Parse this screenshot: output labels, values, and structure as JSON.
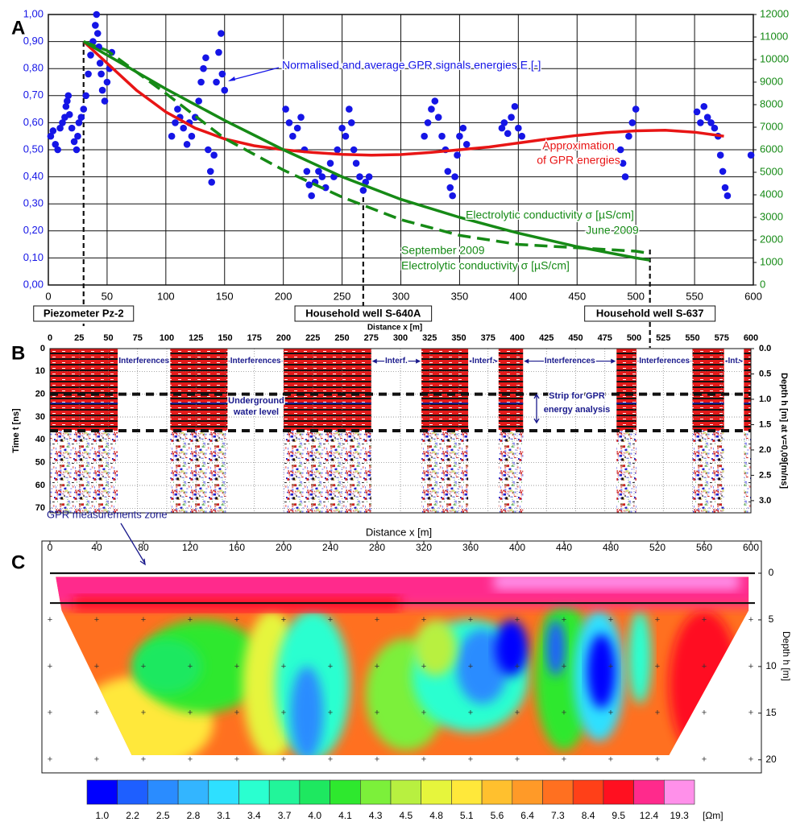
{
  "chart_data": [
    {
      "type": "energy",
      "panel_label": "A",
      "xlim": [
        0,
        600
      ],
      "xticks": [
        0,
        50,
        100,
        150,
        200,
        250,
        300,
        350,
        400,
        450,
        500,
        550,
        600
      ],
      "ylim": [
        0,
        1
      ],
      "yticks": [
        {
          "value": 0,
          "label": "0,00"
        },
        {
          "value": 0.1,
          "label": "0,10"
        },
        {
          "value": 0.2,
          "label": "0,20"
        },
        {
          "value": 0.3,
          "label": "0,30"
        },
        {
          "value": 0.4,
          "label": "0,40"
        },
        {
          "value": 0.5,
          "label": "0,50"
        },
        {
          "value": 0.6,
          "label": "0,60"
        },
        {
          "value": 0.7,
          "label": "0,70"
        },
        {
          "value": 0.8,
          "label": "0,80"
        },
        {
          "value": 0.9,
          "label": "0,90"
        },
        {
          "value": 1,
          "label": "1,00"
        }
      ],
      "y2lim": [
        0,
        12000
      ],
      "y2ticks": [
        0,
        1000,
        2000,
        3000,
        4000,
        5000,
        6000,
        7000,
        8000,
        9000,
        10000,
        11000,
        12000
      ],
      "grid": true,
      "series": [
        {
          "type": "scatter",
          "color": "#1515e6",
          "x": [
            2,
            4,
            6,
            8,
            10,
            12,
            14,
            15,
            16,
            17,
            18,
            20,
            22,
            24,
            25,
            26,
            28,
            30,
            32,
            34,
            36,
            38,
            40,
            41,
            42,
            43,
            44,
            45,
            46,
            48,
            50,
            52,
            54,
            105,
            108,
            110,
            112,
            115,
            118,
            120,
            122,
            125,
            128,
            130,
            132,
            134,
            136,
            138,
            139,
            141,
            143,
            145,
            147,
            148,
            150,
            202,
            205,
            208,
            212,
            215,
            218,
            220,
            222,
            224,
            227,
            230,
            233,
            236,
            240,
            243,
            246,
            250,
            253,
            256,
            258,
            260,
            262,
            265,
            268,
            270,
            273,
            320,
            323,
            326,
            329,
            332,
            335,
            338,
            340,
            342,
            344,
            346,
            348,
            350,
            353,
            356,
            386,
            388,
            391,
            394,
            397,
            400,
            403,
            487,
            489,
            491,
            494,
            497,
            500,
            552,
            555,
            558,
            561,
            564,
            567,
            570,
            572,
            574,
            576,
            578,
            598
          ],
          "values": [
            0.55,
            0.57,
            0.52,
            0.5,
            0.58,
            0.6,
            0.62,
            0.66,
            0.68,
            0.7,
            0.63,
            0.58,
            0.53,
            0.5,
            0.55,
            0.6,
            0.62,
            0.65,
            0.7,
            0.78,
            0.85,
            0.9,
            0.96,
            1.0,
            0.93,
            0.88,
            0.82,
            0.78,
            0.72,
            0.68,
            0.75,
            0.8,
            0.86,
            0.55,
            0.6,
            0.65,
            0.62,
            0.58,
            0.52,
            0.6,
            0.55,
            0.62,
            0.68,
            0.75,
            0.8,
            0.84,
            0.5,
            0.42,
            0.38,
            0.48,
            0.75,
            0.86,
            0.93,
            0.78,
            0.72,
            0.65,
            0.6,
            0.55,
            0.58,
            0.62,
            0.5,
            0.42,
            0.37,
            0.33,
            0.38,
            0.42,
            0.4,
            0.36,
            0.45,
            0.4,
            0.5,
            0.58,
            0.55,
            0.65,
            0.6,
            0.5,
            0.45,
            0.4,
            0.35,
            0.38,
            0.4,
            0.55,
            0.6,
            0.65,
            0.68,
            0.62,
            0.55,
            0.5,
            0.42,
            0.36,
            0.33,
            0.4,
            0.48,
            0.55,
            0.58,
            0.52,
            0.58,
            0.6,
            0.56,
            0.62,
            0.66,
            0.58,
            0.55,
            0.5,
            0.45,
            0.4,
            0.55,
            0.6,
            0.65,
            0.64,
            0.6,
            0.66,
            0.62,
            0.6,
            0.58,
            0.55,
            0.48,
            0.42,
            0.36,
            0.33,
            0.48
          ]
        },
        {
          "type": "line",
          "color": "#e81515",
          "x": [
            30,
            50,
            75,
            100,
            125,
            150,
            175,
            200,
            225,
            250,
            275,
            300,
            325,
            350,
            375,
            400,
            425,
            450,
            475,
            500,
            525,
            550,
            575
          ],
          "values": [
            0.9,
            0.82,
            0.72,
            0.64,
            0.58,
            0.54,
            0.515,
            0.5,
            0.49,
            0.483,
            0.48,
            0.482,
            0.49,
            0.5,
            0.51,
            0.525,
            0.54,
            0.553,
            0.563,
            0.57,
            0.572,
            0.565,
            0.55
          ]
        },
        {
          "type": "line",
          "color": "#168a16",
          "axis": "y2",
          "x": [
            30,
            50,
            100,
            150,
            200,
            250,
            300,
            350,
            400,
            450,
            500,
            512
          ],
          "values": [
            10800,
            10200,
            8700,
            7300,
            6000,
            4800,
            3800,
            3000,
            2300,
            1700,
            1200,
            1100
          ]
        },
        {
          "type": "line",
          "color": "#168a16",
          "axis": "y2",
          "dashed": true,
          "x": [
            30,
            50,
            100,
            150,
            200,
            250,
            300,
            350,
            400,
            450,
            500,
            512
          ],
          "values": [
            10800,
            10400,
            8500,
            6500,
            5100,
            3900,
            2900,
            2200,
            1800,
            1650,
            1500,
            1400
          ]
        }
      ],
      "annotations": [
        "Normalised and average GPR signals energies E [-]",
        "Approximation",
        "of GPR energies",
        "Electrolytic conductivity σ [µS/cm]",
        "June 2009",
        "September 2009",
        "Electrolytic conductivity σ [µS/cm]"
      ],
      "wells": [
        {
          "x": 30,
          "label": "Piezometer Pz-2"
        },
        {
          "x": 268,
          "label": "Household well S-640A"
        },
        {
          "x": 512,
          "label": "Household well S-637"
        }
      ]
    },
    {
      "type": "radargram",
      "panel_label": "B",
      "xlabel": "Distance  x [m]",
      "ylabel": "Time t [ns]",
      "y2label": "Depth h [m] at v=0,09[m/ns]",
      "xlim": [
        0,
        600
      ],
      "xticks": [
        0,
        25,
        50,
        75,
        100,
        125,
        150,
        175,
        200,
        225,
        250,
        275,
        300,
        325,
        350,
        375,
        400,
        425,
        450,
        475,
        500,
        525,
        550,
        575,
        600
      ],
      "ylim": [
        0,
        72
      ],
      "yticks": [
        0,
        10,
        20,
        30,
        40,
        50,
        60,
        70
      ],
      "y2lim": [
        0,
        3.24
      ],
      "y2ticks": [
        {
          "value": 0,
          "label": "0.0"
        },
        0.5,
        {
          "value": 1,
          "label": "1.0"
        },
        1.5,
        {
          "value": 2,
          "label": "2.0"
        },
        2.5,
        {
          "value": 3,
          "label": "3.0"
        }
      ],
      "sections": [
        [
          0,
          58
        ],
        [
          103,
          152
        ],
        [
          200,
          275
        ],
        [
          318,
          358
        ],
        [
          384,
          405
        ],
        [
          485,
          502
        ],
        [
          550,
          577
        ],
        [
          594,
          600
        ]
      ],
      "gap_labels": [
        "Interferences",
        "Interferences",
        "Interf.",
        "Interf.",
        "Interferences",
        "Interferences",
        "Int."
      ],
      "strip_lines": [
        20,
        36
      ],
      "annotations": [
        "Underground",
        "water level",
        "Strip for GPR",
        "energy analysis"
      ]
    },
    {
      "type": "resistivity",
      "panel_label": "C",
      "xlabel": "Distance  x [m]",
      "ylabel": "Depth  h [m]",
      "xlim": [
        0,
        600
      ],
      "xticks": [
        0,
        40,
        80,
        120,
        160,
        200,
        240,
        280,
        320,
        360,
        400,
        440,
        480,
        520,
        560,
        600
      ],
      "ylim": [
        0,
        21.4
      ],
      "yticks": [
        0,
        5,
        10,
        15,
        20
      ],
      "gpr_zone": [
        0,
        3.2
      ],
      "annotation": "GPR measurements zone",
      "colorbar": {
        "unit": "[Ωm]",
        "levels": [
          {
            "value": 1,
            "label": "1.0"
          },
          2.2,
          2.5,
          2.8,
          3.1,
          3.4,
          3.7,
          {
            "value": 4,
            "label": "4.0"
          },
          4.1,
          4.3,
          4.5,
          4.8,
          5.1,
          5.6,
          6.4,
          7.3,
          8.4,
          9.5,
          12.4,
          19.3
        ],
        "colors": [
          "#0000ff",
          "#1e5fff",
          "#2a8cff",
          "#33b5ff",
          "#2ee0ff",
          "#2affd0",
          "#22f59a",
          "#1ee860",
          "#2ee82e",
          "#7cf03a",
          "#b8f040",
          "#e6f53c",
          "#ffe83a",
          "#ffc02e",
          "#ff9a28",
          "#ff7020",
          "#ff4018",
          "#ff1020",
          "#ff2a8c",
          "#ff90ea"
        ]
      }
    }
  ]
}
